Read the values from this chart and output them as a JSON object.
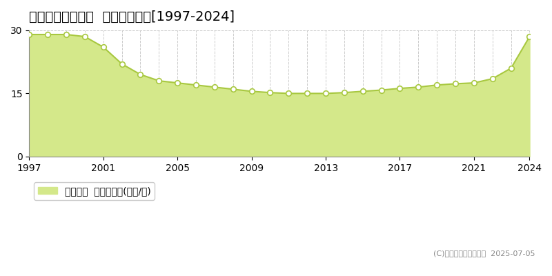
{
  "title": "仙台市泉区南中山  基準地価推移[1997-2024]",
  "years": [
    1997,
    1998,
    1999,
    2000,
    2001,
    2002,
    2003,
    2004,
    2005,
    2006,
    2007,
    2008,
    2009,
    2010,
    2011,
    2012,
    2013,
    2014,
    2015,
    2016,
    2017,
    2018,
    2019,
    2020,
    2021,
    2022,
    2023,
    2024
  ],
  "values": [
    29.0,
    29.0,
    29.0,
    28.5,
    26.0,
    22.0,
    19.5,
    18.0,
    17.5,
    17.0,
    16.5,
    16.0,
    15.5,
    15.2,
    15.0,
    15.0,
    15.0,
    15.2,
    15.5,
    15.8,
    16.2,
    16.5,
    17.0,
    17.3,
    17.5,
    18.5,
    21.0,
    28.5
  ],
  "line_color": "#a8c840",
  "fill_color": "#d4e88a",
  "marker_color": "white",
  "marker_edge_color": "#a8c840",
  "bg_color": "#ffffff",
  "plot_bg_color": "#ffffff",
  "grid_color": "#cccccc",
  "ylim": [
    0,
    30
  ],
  "yticks": [
    0,
    15,
    30
  ],
  "xtick_interval": 4,
  "xlabel": "",
  "ylabel": "",
  "legend_label": "基準地価  平均坪単価(万円/坪)",
  "copyright_text": "(C)土地価格ドットコム  2025-07-05",
  "title_fontsize": 14,
  "tick_fontsize": 10,
  "legend_fontsize": 10
}
